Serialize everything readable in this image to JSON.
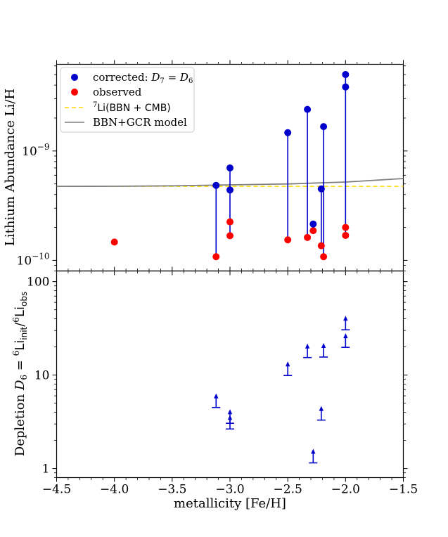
{
  "chart_data": [
    {
      "type": "scatter",
      "panel": "top",
      "ylabel": "Lithium Abundance Li/H",
      "yscale": "log",
      "ylim": [
        8e-11,
        6.2e-09
      ],
      "xlim": [
        -4.5,
        -1.5
      ],
      "yticks": [
        {
          "value": 1e-10,
          "base": "10",
          "exp": "−10"
        },
        {
          "value": 1e-09,
          "base": "10",
          "exp": "−9"
        }
      ],
      "legend": {
        "placement": "top-left",
        "entries": [
          {
            "key": "corrected",
            "text": "corrected: ",
            "math": "D",
            "sub1": "7",
            "eq": " = ",
            "math2": "D",
            "sub2": "6"
          },
          {
            "key": "observed",
            "text": "observed"
          },
          {
            "key": "bbn",
            "sup": "7",
            "text": "Li(BBN + CMB)"
          },
          {
            "key": "gcr",
            "text": "BBN+GCR model"
          }
        ]
      },
      "observed": [
        {
          "x": -4.0,
          "y": 1.47e-10
        },
        {
          "x": -3.12,
          "y": 1.08e-10
        },
        {
          "x": -3.0,
          "y": 2.25e-10
        },
        {
          "x": -3.0,
          "y": 1.68e-10
        },
        {
          "x": -2.5,
          "y": 1.54e-10
        },
        {
          "x": -2.33,
          "y": 1.62e-10
        },
        {
          "x": -2.28,
          "y": 1.87e-10
        },
        {
          "x": -2.21,
          "y": 1.36e-10
        },
        {
          "x": -2.19,
          "y": 1.08e-10
        },
        {
          "x": -2.0,
          "y": 2e-10
        },
        {
          "x": -2.0,
          "y": 1.69e-10
        }
      ],
      "corrected": [
        {
          "x": -3.12,
          "y": 4.85e-10
        },
        {
          "x": -3.0,
          "y": 7e-10
        },
        {
          "x": -3.0,
          "y": 4.4e-10
        },
        {
          "x": -2.5,
          "y": 1.47e-09
        },
        {
          "x": -2.33,
          "y": 2.4e-09
        },
        {
          "x": -2.28,
          "y": 2.15e-10
        },
        {
          "x": -2.21,
          "y": 4.5e-10
        },
        {
          "x": -2.19,
          "y": 1.67e-09
        },
        {
          "x": -2.0,
          "y": 5e-09
        },
        {
          "x": -2.0,
          "y": 3.85e-09
        }
      ],
      "segments": [
        {
          "x": -3.12,
          "y1": 1.08e-10,
          "y2": 4.85e-10
        },
        {
          "x": -3.0,
          "y1": 1.68e-10,
          "y2": 7e-10
        },
        {
          "x": -2.5,
          "y1": 1.54e-10,
          "y2": 1.47e-09
        },
        {
          "x": -2.33,
          "y1": 1.62e-10,
          "y2": 2.4e-09
        },
        {
          "x": -2.28,
          "y1": 1.87e-10,
          "y2": 2.15e-10
        },
        {
          "x": -2.21,
          "y1": 1.36e-10,
          "y2": 4.5e-10
        },
        {
          "x": -2.19,
          "y1": 1.08e-10,
          "y2": 1.67e-09
        },
        {
          "x": -2.0,
          "y1": 1.69e-10,
          "y2": 5e-09
        }
      ],
      "bbn_cmb_line": {
        "y": 4.75e-10
      },
      "gcr_model": [
        {
          "x": -4.5,
          "y": 4.75e-10
        },
        {
          "x": -4.0,
          "y": 4.76e-10
        },
        {
          "x": -3.5,
          "y": 4.8e-10
        },
        {
          "x": -3.0,
          "y": 4.9e-10
        },
        {
          "x": -2.5,
          "y": 5e-10
        },
        {
          "x": -2.0,
          "y": 5.2e-10
        },
        {
          "x": -1.5,
          "y": 5.6e-10
        }
      ],
      "colors": {
        "corrected": "#0000cc",
        "observed": "#ff0000",
        "bbn": "#ffd700",
        "gcr": "#808080"
      }
    },
    {
      "type": "scatter",
      "panel": "bottom",
      "subtype": "lower-limit arrows",
      "xlabel": "metallicity [Fe/H]",
      "ylabel": {
        "pre": "Depletion ",
        "math": "D",
        "sub": "6",
        "mid": " = ",
        "sup1": "6",
        "li1": "Li",
        "sub_a": "init",
        "slash": "/",
        "sup2": "6",
        "li2": "Li",
        "sub_b": "obs"
      },
      "yscale": "log",
      "ylim": [
        0.8,
        130
      ],
      "xlim": [
        -4.5,
        -1.5
      ],
      "yticks": [
        {
          "value": 1,
          "label": "1"
        },
        {
          "value": 10,
          "label": "10"
        },
        {
          "value": 100,
          "label": "100"
        }
      ],
      "xticks": [
        {
          "value": -4.5,
          "label": "−4.5"
        },
        {
          "value": -4.0,
          "label": "−4.0"
        },
        {
          "value": -3.5,
          "label": "−3.5"
        },
        {
          "value": -3.0,
          "label": "−3.0"
        },
        {
          "value": -2.5,
          "label": "−2.5"
        },
        {
          "value": -2.0,
          "label": "−2.0"
        },
        {
          "value": -1.5,
          "label": "−1.5"
        }
      ],
      "limits": [
        {
          "x": -3.12,
          "y": 4.5
        },
        {
          "x": -3.0,
          "y": 3.05
        },
        {
          "x": -3.0,
          "y": 2.65
        },
        {
          "x": -2.5,
          "y": 9.9
        },
        {
          "x": -2.33,
          "y": 15.4
        },
        {
          "x": -2.28,
          "y": 1.15
        },
        {
          "x": -2.21,
          "y": 3.3
        },
        {
          "x": -2.19,
          "y": 15.6
        },
        {
          "x": -2.0,
          "y": 30.5
        },
        {
          "x": -2.0,
          "y": 19.8
        }
      ],
      "colors": {
        "limits": "#0000cc"
      }
    }
  ]
}
